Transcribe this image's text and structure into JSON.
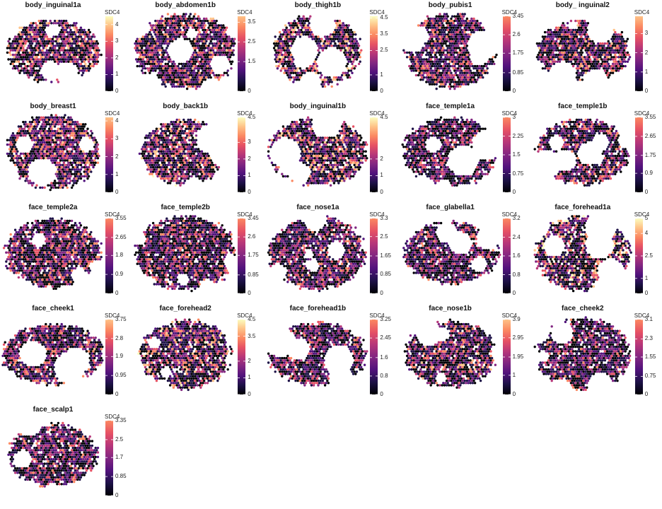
{
  "chart_data": {
    "type": "heatmap",
    "variable": "SDC4",
    "panels": [
      {
        "name": "body_inguinal1a",
        "max": 4.5,
        "ticks": [
          0,
          1,
          2,
          3,
          4
        ]
      },
      {
        "name": "body_abdomen1b",
        "max": 3.8,
        "ticks": [
          0,
          1.5,
          2.5,
          3.5
        ]
      },
      {
        "name": "body_thigh1b",
        "max": 4.6,
        "ticks": [
          0,
          1,
          2.5,
          3.5,
          4.5
        ]
      },
      {
        "name": "body_pubis1",
        "max": 3.45,
        "ticks": [
          0,
          0.85,
          1.75,
          2.6,
          3.45
        ]
      },
      {
        "name": "body_ inguinal2",
        "max": 3.9,
        "ticks": [
          0,
          1,
          2,
          3
        ]
      },
      {
        "name": "body_breast1",
        "max": 4.2,
        "ticks": [
          0,
          1,
          2,
          3,
          4
        ]
      },
      {
        "name": "body_back1b",
        "max": 4.5,
        "ticks": [
          0,
          1,
          2,
          3,
          4.5
        ]
      },
      {
        "name": "body_inguinal1b",
        "max": 4.5,
        "ticks": [
          0,
          1,
          2,
          4.5
        ]
      },
      {
        "name": "face_temple1a",
        "max": 3,
        "ticks": [
          0,
          0.75,
          1.5,
          2.25,
          3
        ]
      },
      {
        "name": "face_temple1b",
        "max": 3.55,
        "ticks": [
          0,
          0.9,
          1.75,
          2.65,
          3.55
        ]
      },
      {
        "name": "face_temple2a",
        "max": 3.55,
        "ticks": [
          0,
          0.9,
          1.8,
          2.65,
          3.55
        ]
      },
      {
        "name": "face_temple2b",
        "max": 3.45,
        "ticks": [
          0,
          0.85,
          1.75,
          2.6,
          3.45
        ]
      },
      {
        "name": "face_nose1a",
        "max": 3.3,
        "ticks": [
          0,
          0.85,
          1.65,
          2.5,
          3.3
        ]
      },
      {
        "name": "face_glabella1",
        "max": 3.2,
        "ticks": [
          0,
          0.8,
          1.6,
          2.4,
          3.2
        ]
      },
      {
        "name": "face_forehead1a",
        "max": 5,
        "ticks": [
          0,
          1,
          2.5,
          4,
          5
        ]
      },
      {
        "name": "face_cheek1",
        "max": 3.75,
        "ticks": [
          0,
          0.95,
          1.9,
          2.8,
          3.75
        ]
      },
      {
        "name": "face_forehead2",
        "max": 4.5,
        "ticks": [
          0,
          1,
          2,
          3.5,
          4.5
        ]
      },
      {
        "name": "face_forehead1b",
        "max": 3.25,
        "ticks": [
          0,
          0.8,
          1.6,
          2.45,
          3.25
        ]
      },
      {
        "name": "face_nose1b",
        "max": 3.9,
        "ticks": [
          0,
          1,
          1.95,
          2.95,
          3.9
        ]
      },
      {
        "name": "face_cheek2",
        "max": 3.1,
        "ticks": [
          0,
          0.75,
          1.55,
          2.3,
          3.1
        ]
      },
      {
        "name": "face_scalp1",
        "max": 3.35,
        "ticks": [
          0,
          0.85,
          1.7,
          2.5,
          3.35
        ]
      }
    ],
    "colormap": [
      "#000004",
      "#1d1147",
      "#51127c",
      "#822681",
      "#b63679",
      "#e65164",
      "#fb8861",
      "#fec287",
      "#fcfdbf"
    ]
  }
}
